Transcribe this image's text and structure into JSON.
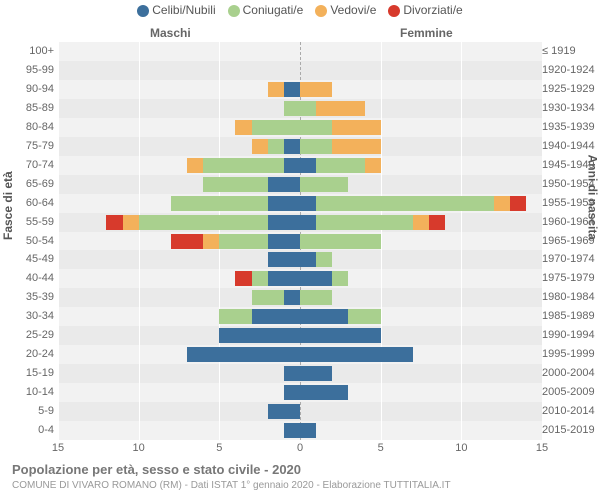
{
  "chart": {
    "type": "population-pyramid",
    "title": "Popolazione per età, sesso e stato civile - 2020",
    "subtitle": "COMUNE DI VIVARO ROMANO (RM) - Dati ISTAT 1° gennaio 2020 - Elaborazione TUTTITALIA.IT",
    "legend": [
      {
        "label": "Celibi/Nubili",
        "color": "#3c6f9c"
      },
      {
        "label": "Coniugati/e",
        "color": "#a9d08e"
      },
      {
        "label": "Vedovi/e",
        "color": "#f3b15b"
      },
      {
        "label": "Divorziati/e",
        "color": "#d73a2c"
      }
    ],
    "male_label": "Maschi",
    "female_label": "Femmine",
    "left_axis_label": "Fasce di età",
    "right_axis_label": "Anni di nascita",
    "xmax": 15,
    "x_ticks": [
      15,
      10,
      5,
      0,
      5,
      10,
      15
    ],
    "plot_background": "#f2f2f2",
    "grid_color": "#ffffff",
    "stripe_color": "#eaeaea",
    "font_color_axis": "#666",
    "colors": {
      "celibi": "#3c6f9c",
      "coniugati": "#a9d08e",
      "vedovi": "#f3b15b",
      "divorziati": "#d73a2c"
    },
    "rows": [
      {
        "age": "100+",
        "birth": "≤ 1919",
        "stripe": false,
        "male": {
          "c": 0,
          "m": 0,
          "w": 0,
          "d": 0
        },
        "female": {
          "c": 0,
          "m": 0,
          "w": 0,
          "d": 0
        }
      },
      {
        "age": "95-99",
        "birth": "1920-1924",
        "stripe": true,
        "male": {
          "c": 0,
          "m": 0,
          "w": 0,
          "d": 0
        },
        "female": {
          "c": 0,
          "m": 0,
          "w": 0,
          "d": 0
        }
      },
      {
        "age": "90-94",
        "birth": "1925-1929",
        "stripe": false,
        "male": {
          "c": 1,
          "m": 0,
          "w": 1,
          "d": 0
        },
        "female": {
          "c": 0,
          "m": 0,
          "w": 2,
          "d": 0
        }
      },
      {
        "age": "85-89",
        "birth": "1930-1934",
        "stripe": true,
        "male": {
          "c": 0,
          "m": 1,
          "w": 0,
          "d": 0
        },
        "female": {
          "c": 0,
          "m": 1,
          "w": 3,
          "d": 0
        }
      },
      {
        "age": "80-84",
        "birth": "1935-1939",
        "stripe": false,
        "male": {
          "c": 0,
          "m": 3,
          "w": 1,
          "d": 0
        },
        "female": {
          "c": 0,
          "m": 2,
          "w": 3,
          "d": 0
        }
      },
      {
        "age": "75-79",
        "birth": "1940-1944",
        "stripe": true,
        "male": {
          "c": 1,
          "m": 1,
          "w": 1,
          "d": 0
        },
        "female": {
          "c": 0,
          "m": 2,
          "w": 3,
          "d": 0
        }
      },
      {
        "age": "70-74",
        "birth": "1945-1949",
        "stripe": false,
        "male": {
          "c": 1,
          "m": 5,
          "w": 1,
          "d": 0
        },
        "female": {
          "c": 1,
          "m": 3,
          "w": 1,
          "d": 0
        }
      },
      {
        "age": "65-69",
        "birth": "1950-1954",
        "stripe": true,
        "male": {
          "c": 2,
          "m": 4,
          "w": 0,
          "d": 0
        },
        "female": {
          "c": 0,
          "m": 3,
          "w": 0,
          "d": 0
        }
      },
      {
        "age": "60-64",
        "birth": "1955-1959",
        "stripe": false,
        "male": {
          "c": 2,
          "m": 6,
          "w": 0,
          "d": 0
        },
        "female": {
          "c": 1,
          "m": 11,
          "w": 1,
          "d": 1
        }
      },
      {
        "age": "55-59",
        "birth": "1960-1964",
        "stripe": true,
        "male": {
          "c": 2,
          "m": 8,
          "w": 1,
          "d": 1
        },
        "female": {
          "c": 1,
          "m": 6,
          "w": 1,
          "d": 1
        }
      },
      {
        "age": "50-54",
        "birth": "1965-1969",
        "stripe": false,
        "male": {
          "c": 2,
          "m": 3,
          "w": 1,
          "d": 2
        },
        "female": {
          "c": 0,
          "m": 5,
          "w": 0,
          "d": 0
        }
      },
      {
        "age": "45-49",
        "birth": "1970-1974",
        "stripe": true,
        "male": {
          "c": 2,
          "m": 0,
          "w": 0,
          "d": 0
        },
        "female": {
          "c": 1,
          "m": 1,
          "w": 0,
          "d": 0
        }
      },
      {
        "age": "40-44",
        "birth": "1975-1979",
        "stripe": false,
        "male": {
          "c": 2,
          "m": 1,
          "w": 0,
          "d": 1
        },
        "female": {
          "c": 2,
          "m": 1,
          "w": 0,
          "d": 0
        }
      },
      {
        "age": "35-39",
        "birth": "1980-1984",
        "stripe": true,
        "male": {
          "c": 1,
          "m": 2,
          "w": 0,
          "d": 0
        },
        "female": {
          "c": 0,
          "m": 2,
          "w": 0,
          "d": 0
        }
      },
      {
        "age": "30-34",
        "birth": "1985-1989",
        "stripe": false,
        "male": {
          "c": 3,
          "m": 2,
          "w": 0,
          "d": 0
        },
        "female": {
          "c": 3,
          "m": 2,
          "w": 0,
          "d": 0
        }
      },
      {
        "age": "25-29",
        "birth": "1990-1994",
        "stripe": true,
        "male": {
          "c": 5,
          "m": 0,
          "w": 0,
          "d": 0
        },
        "female": {
          "c": 5,
          "m": 0,
          "w": 0,
          "d": 0
        }
      },
      {
        "age": "20-24",
        "birth": "1995-1999",
        "stripe": false,
        "male": {
          "c": 7,
          "m": 0,
          "w": 0,
          "d": 0
        },
        "female": {
          "c": 7,
          "m": 0,
          "w": 0,
          "d": 0
        }
      },
      {
        "age": "15-19",
        "birth": "2000-2004",
        "stripe": true,
        "male": {
          "c": 1,
          "m": 0,
          "w": 0,
          "d": 0
        },
        "female": {
          "c": 2,
          "m": 0,
          "w": 0,
          "d": 0
        }
      },
      {
        "age": "10-14",
        "birth": "2005-2009",
        "stripe": false,
        "male": {
          "c": 1,
          "m": 0,
          "w": 0,
          "d": 0
        },
        "female": {
          "c": 3,
          "m": 0,
          "w": 0,
          "d": 0
        }
      },
      {
        "age": "5-9",
        "birth": "2010-2014",
        "stripe": true,
        "male": {
          "c": 2,
          "m": 0,
          "w": 0,
          "d": 0
        },
        "female": {
          "c": 0,
          "m": 0,
          "w": 0,
          "d": 0
        }
      },
      {
        "age": "0-4",
        "birth": "2015-2019",
        "stripe": false,
        "male": {
          "c": 1,
          "m": 0,
          "w": 0,
          "d": 0
        },
        "female": {
          "c": 1,
          "m": 0,
          "w": 0,
          "d": 0
        }
      }
    ]
  }
}
